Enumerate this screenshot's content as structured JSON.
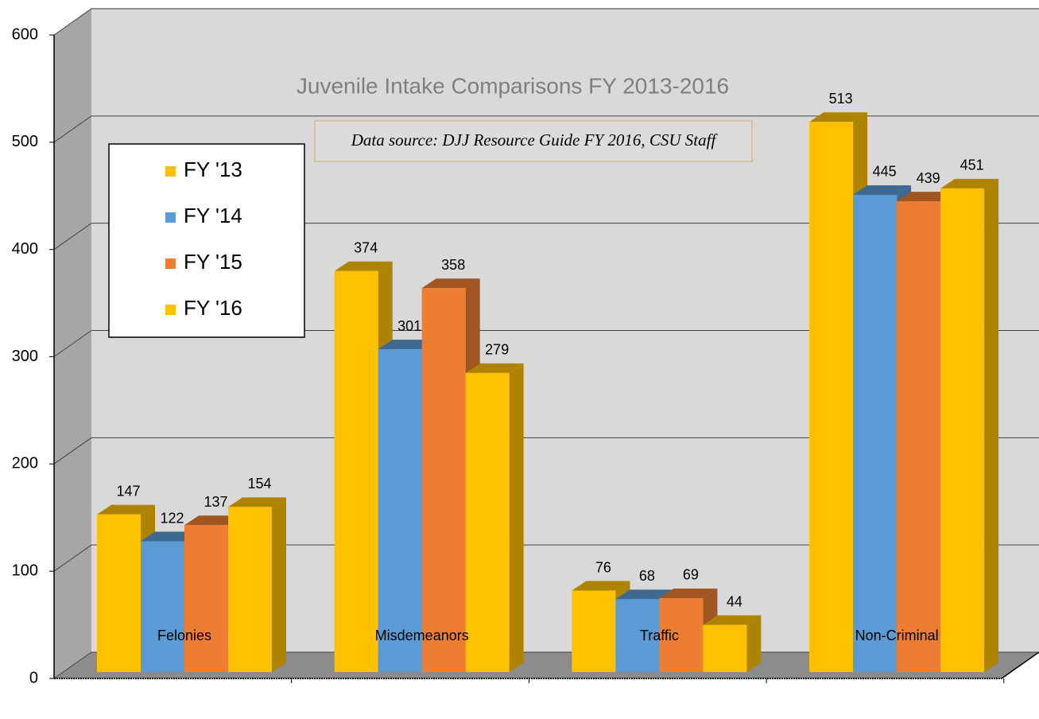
{
  "chart_data": {
    "type": "bar3d",
    "title": "Juvenile Intake Comparisons FY 2013-2016",
    "annotation": "Data source: DJJ Resource Guide FY 2016, CSU Staff",
    "categories": [
      "Felonies",
      "Misdemeanors",
      "Traffic",
      "Non-Criminal"
    ],
    "series": [
      {
        "name": "FY '13",
        "color": "#ffc000",
        "values": [
          147,
          374,
          76,
          513
        ]
      },
      {
        "name": "FY '14",
        "color": "#5b9bd5",
        "values": [
          122,
          301,
          68,
          445
        ]
      },
      {
        "name": "FY '15",
        "color": "#ed7d31",
        "values": [
          137,
          358,
          69,
          439
        ]
      },
      {
        "name": "FY '16",
        "color": "#ffc000",
        "values": [
          154,
          279,
          44,
          451
        ]
      }
    ],
    "ylim": [
      0,
      600
    ],
    "yticks": [
      0,
      100,
      200,
      300,
      400,
      500,
      600
    ],
    "grid": true,
    "legend": "upper left"
  }
}
